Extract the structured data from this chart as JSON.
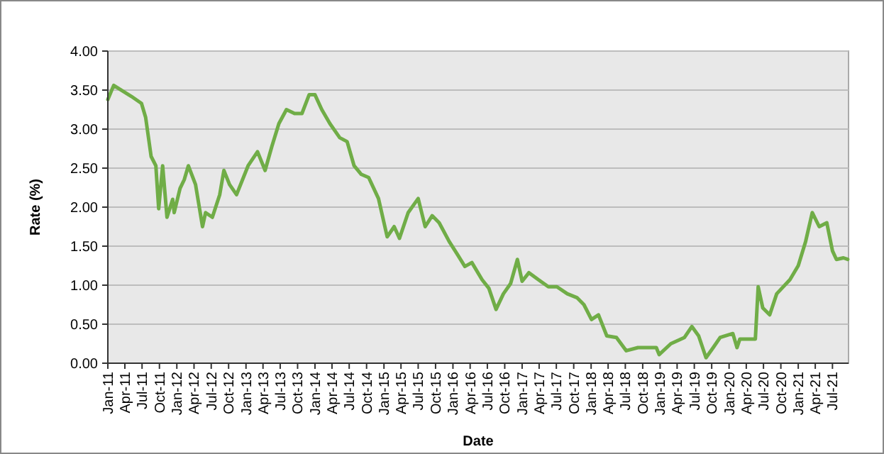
{
  "chart_data": {
    "type": "line",
    "xlabel": "Date",
    "ylabel": "Rate (%)",
    "grid": "y",
    "marker": "none",
    "line_style": "solid",
    "xlim": [
      "2011-01-01",
      "2021-09-24"
    ],
    "ylim": [
      0,
      4
    ],
    "yticks": [
      {
        "value": 0,
        "label": "0.00"
      },
      {
        "value": 0.5,
        "label": "0.50"
      },
      {
        "value": 1,
        "label": "1.00"
      },
      {
        "value": 1.5,
        "label": "1.50"
      },
      {
        "value": 2,
        "label": "2.00"
      },
      {
        "value": 2.5,
        "label": "2.50"
      },
      {
        "value": 3,
        "label": "3.00"
      },
      {
        "value": 3.5,
        "label": "3.50"
      },
      {
        "value": 4,
        "label": "4.00"
      }
    ],
    "xticks": [
      {
        "value": "2011-01-01",
        "label": "Jan-11"
      },
      {
        "value": "2011-04-01",
        "label": "Apr-11"
      },
      {
        "value": "2011-07-01",
        "label": "Jul-11"
      },
      {
        "value": "2011-10-01",
        "label": "Oct-11"
      },
      {
        "value": "2012-01-01",
        "label": "Jan-12"
      },
      {
        "value": "2012-04-01",
        "label": "Apr-12"
      },
      {
        "value": "2012-07-01",
        "label": "Jul-12"
      },
      {
        "value": "2012-10-01",
        "label": "Oct-12"
      },
      {
        "value": "2013-01-01",
        "label": "Jan-13"
      },
      {
        "value": "2013-04-01",
        "label": "Apr-13"
      },
      {
        "value": "2013-07-01",
        "label": "Jul-13"
      },
      {
        "value": "2013-10-01",
        "label": "Oct-13"
      },
      {
        "value": "2014-01-01",
        "label": "Jan-14"
      },
      {
        "value": "2014-04-01",
        "label": "Apr-14"
      },
      {
        "value": "2014-07-01",
        "label": "Jul-14"
      },
      {
        "value": "2014-10-01",
        "label": "Oct-14"
      },
      {
        "value": "2015-01-01",
        "label": "Jan-15"
      },
      {
        "value": "2015-04-01",
        "label": "Apr-15"
      },
      {
        "value": "2015-07-01",
        "label": "Jul-15"
      },
      {
        "value": "2015-10-01",
        "label": "Oct-15"
      },
      {
        "value": "2016-01-01",
        "label": "Jan-16"
      },
      {
        "value": "2016-04-01",
        "label": "Apr-16"
      },
      {
        "value": "2016-07-01",
        "label": "Jul-16"
      },
      {
        "value": "2016-10-01",
        "label": "Oct-16"
      },
      {
        "value": "2017-01-01",
        "label": "Jan-17"
      },
      {
        "value": "2017-04-01",
        "label": "Apr-17"
      },
      {
        "value": "2017-07-01",
        "label": "Jul-17"
      },
      {
        "value": "2017-10-01",
        "label": "Oct-17"
      },
      {
        "value": "2018-01-01",
        "label": "Jan-18"
      },
      {
        "value": "2018-04-01",
        "label": "Apr-18"
      },
      {
        "value": "2018-07-01",
        "label": "Jul-18"
      },
      {
        "value": "2018-10-01",
        "label": "Oct-18"
      },
      {
        "value": "2019-01-01",
        "label": "Jan-19"
      },
      {
        "value": "2019-04-01",
        "label": "Apr-19"
      },
      {
        "value": "2019-07-01",
        "label": "Jul-19"
      },
      {
        "value": "2019-10-01",
        "label": "Oct-19"
      },
      {
        "value": "2020-01-01",
        "label": "Jan-20"
      },
      {
        "value": "2020-04-01",
        "label": "Apr-20"
      },
      {
        "value": "2020-07-01",
        "label": "Jul-20"
      },
      {
        "value": "2020-10-01",
        "label": "Oct-20"
      },
      {
        "value": "2021-01-01",
        "label": "Jan-21"
      },
      {
        "value": "2021-04-01",
        "label": "Apr-21"
      },
      {
        "value": "2021-07-01",
        "label": "Jul-21"
      }
    ],
    "series": [
      {
        "color": "#70ad47",
        "x": [
          "2011-01-01",
          "2011-02-01",
          "2011-05-05",
          "2011-06-28",
          "2011-07-20",
          "2011-08-18",
          "2011-09-12",
          "2011-09-27",
          "2011-10-18",
          "2011-11-10",
          "2011-12-10",
          "2011-12-18",
          "2012-01-18",
          "2012-02-09",
          "2012-03-02",
          "2012-04-09",
          "2012-05-16",
          "2012-06-01",
          "2012-07-07",
          "2012-08-15",
          "2012-09-06",
          "2012-10-06",
          "2012-11-12",
          "2013-01-12",
          "2013-03-03",
          "2013-04-12",
          "2013-05-18",
          "2013-06-24",
          "2013-08-03",
          "2013-09-15",
          "2013-10-24",
          "2013-12-01",
          "2014-01-01",
          "2014-02-06",
          "2014-03-21",
          "2014-05-12",
          "2014-06-20",
          "2014-07-27",
          "2014-09-03",
          "2014-10-12",
          "2014-12-03",
          "2015-01-18",
          "2015-02-24",
          "2015-03-24",
          "2015-05-09",
          "2015-07-01",
          "2015-08-07",
          "2015-09-13",
          "2015-10-20",
          "2015-12-12",
          "2016-01-28",
          "2016-03-04",
          "2016-04-10",
          "2016-06-03",
          "2016-07-09",
          "2016-08-16",
          "2016-09-24",
          "2016-11-01",
          "2016-12-07",
          "2017-01-01",
          "2017-02-06",
          "2017-03-28",
          "2017-05-20",
          "2017-07-04",
          "2017-08-28",
          "2017-10-18",
          "2017-11-24",
          "2018-01-03",
          "2018-02-09",
          "2018-03-25",
          "2018-05-15",
          "2018-07-06",
          "2018-09-06",
          "2018-12-12",
          "2018-12-27",
          "2019-02-27",
          "2019-05-10",
          "2019-06-18",
          "2019-07-24",
          "2019-09-01",
          "2019-10-09",
          "2019-11-15",
          "2020-01-21",
          "2020-02-12",
          "2020-02-27",
          "2020-05-19",
          "2020-06-03",
          "2020-06-27",
          "2020-08-03",
          "2020-09-09",
          "2020-11-18",
          "2021-01-01",
          "2021-02-09",
          "2021-03-16",
          "2021-04-22",
          "2021-06-01",
          "2021-07-01",
          "2021-07-22",
          "2021-08-28",
          "2021-09-20"
        ],
        "values": [
          3.38,
          3.56,
          3.42,
          3.33,
          3.15,
          2.65,
          2.53,
          1.98,
          2.53,
          1.87,
          2.1,
          1.93,
          2.24,
          2.35,
          2.53,
          2.29,
          1.75,
          1.93,
          1.87,
          2.16,
          2.47,
          2.29,
          2.16,
          2.53,
          2.71,
          2.47,
          2.78,
          3.07,
          3.25,
          3.2,
          3.2,
          3.44,
          3.44,
          3.25,
          3.07,
          2.89,
          2.84,
          2.53,
          2.42,
          2.38,
          2.11,
          1.62,
          1.75,
          1.6,
          1.93,
          2.11,
          1.75,
          1.89,
          1.8,
          1.56,
          1.38,
          1.24,
          1.29,
          1.07,
          0.96,
          0.69,
          0.89,
          1.02,
          1.33,
          1.05,
          1.16,
          1.07,
          0.98,
          0.98,
          0.89,
          0.84,
          0.75,
          0.56,
          0.62,
          0.35,
          0.33,
          0.16,
          0.2,
          0.2,
          0.11,
          0.25,
          0.33,
          0.47,
          0.35,
          0.07,
          0.2,
          0.33,
          0.38,
          0.2,
          0.31,
          0.31,
          0.98,
          0.71,
          0.62,
          0.89,
          1.07,
          1.25,
          1.56,
          1.93,
          1.75,
          1.8,
          1.44,
          1.33,
          1.35,
          1.33
        ]
      }
    ]
  }
}
